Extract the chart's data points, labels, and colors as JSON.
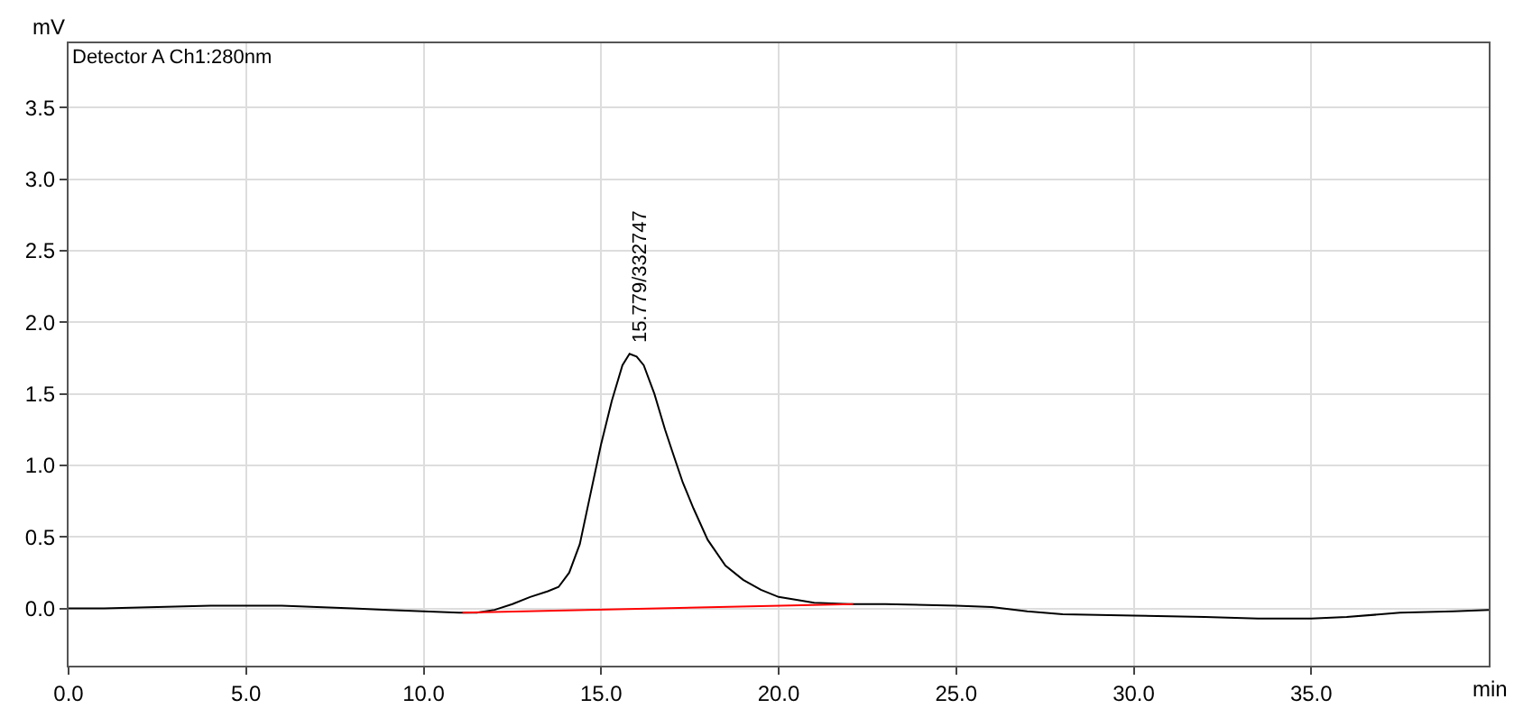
{
  "chart_data": {
    "type": "line",
    "xlabel": "min",
    "ylabel": "mV",
    "annotations": [
      "Detector A Ch1:280nm",
      {
        "text": "15.779/332747",
        "x": 15.779,
        "y": 1.78
      }
    ],
    "series": [
      {
        "color": "#000000",
        "x": [
          0,
          1,
          2.5,
          4,
          5,
          6,
          7,
          8,
          9,
          10,
          11,
          11.5,
          12,
          12.5,
          13,
          13.5,
          13.8,
          14.1,
          14.4,
          14.7,
          15,
          15.3,
          15.6,
          15.8,
          16,
          16.2,
          16.5,
          16.8,
          17,
          17.3,
          17.6,
          18,
          18.5,
          19,
          19.5,
          20,
          20.5,
          21,
          22,
          23,
          25,
          26,
          27,
          28,
          30,
          32,
          33.5,
          35,
          36,
          37.5,
          39,
          40
        ],
        "values": [
          0,
          0,
          0.01,
          0.02,
          0.02,
          0.02,
          0.01,
          0.0,
          -0.01,
          -0.02,
          -0.03,
          -0.03,
          -0.01,
          0.03,
          0.08,
          0.12,
          0.15,
          0.25,
          0.45,
          0.8,
          1.15,
          1.45,
          1.7,
          1.78,
          1.76,
          1.7,
          1.5,
          1.25,
          1.1,
          0.88,
          0.7,
          0.48,
          0.3,
          0.2,
          0.13,
          0.08,
          0.06,
          0.04,
          0.03,
          0.03,
          0.02,
          0.01,
          -0.02,
          -0.04,
          -0.05,
          -0.06,
          -0.07,
          -0.07,
          -0.06,
          -0.03,
          -0.02,
          -0.01
        ]
      },
      {
        "color": "#ff0000",
        "x": [
          11.1,
          22.1
        ],
        "values": [
          -0.03,
          0.03
        ]
      }
    ],
    "xlim": [
      0,
      40
    ],
    "xticks": [
      {
        "value": 0,
        "label": "0.0"
      },
      {
        "value": 5,
        "label": "5.0"
      },
      {
        "value": 10,
        "label": "10.0"
      },
      {
        "value": 15,
        "label": "15.0"
      },
      {
        "value": 20,
        "label": "20.0"
      },
      {
        "value": 25,
        "label": "25.0"
      },
      {
        "value": 30,
        "label": "30.0"
      },
      {
        "value": 35,
        "label": "35.0"
      }
    ],
    "ylim": [
      -0.4,
      3.95
    ],
    "yticks": [
      {
        "value": 0,
        "label": "0.0"
      },
      {
        "value": 0.5,
        "label": "0.5"
      },
      {
        "value": 1,
        "label": "1.0"
      },
      {
        "value": 1.5,
        "label": "1.5"
      },
      {
        "value": 2,
        "label": "2.0"
      },
      {
        "value": 2.5,
        "label": "2.5"
      },
      {
        "value": 3,
        "label": "3.0"
      },
      {
        "value": 3.5,
        "label": "3.5"
      }
    ],
    "grid": true,
    "marker": "none",
    "line_style": "solid"
  }
}
